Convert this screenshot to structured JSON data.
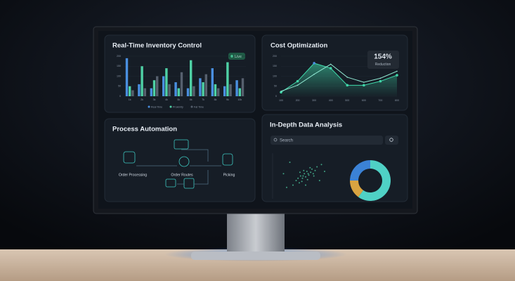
{
  "panels": {
    "inventory": {
      "title": "Real-Time Inventory Control",
      "badge": "Live",
      "chart_data": {
        "type": "bar",
        "categories": [
          "1k",
          "2k",
          "3k",
          "4k",
          "5k",
          "6k",
          "7k",
          "8k",
          "9k",
          "10k"
        ],
        "series": [
          {
            "name": "Real Time",
            "color": "#4a8fe0",
            "values": [
              190,
              60,
              40,
              100,
              70,
              40,
              90,
              140,
              50,
              80
            ]
          },
          {
            "name": "Proximity",
            "color": "#4fd1a5",
            "values": [
              50,
              150,
              80,
              140,
              40,
              180,
              70,
              60,
              170,
              40
            ]
          },
          {
            "name": "Fat Time",
            "color": "#56606e",
            "values": [
              30,
              40,
              100,
              60,
              120,
              50,
              110,
              40,
              60,
              90
            ]
          }
        ],
        "ylim": [
          0,
          200
        ],
        "yticks": [
          0,
          50,
          100,
          150,
          200
        ]
      }
    },
    "cost": {
      "title": "Cost Optimization",
      "stat": "154%",
      "stat_label": "Reduction",
      "chart_data": {
        "type": "line",
        "x": [
          100,
          200,
          300,
          400,
          500,
          600,
          700,
          800
        ],
        "series": [
          {
            "color": "#3fd6a8",
            "values": [
              20,
              75,
              165,
              140,
              55,
              55,
              75,
              105
            ]
          },
          {
            "color": "#8fe6d0",
            "values": [
              25,
              55,
              110,
              160,
              95,
              70,
              90,
              125
            ]
          }
        ],
        "xlim": [
          100,
          800
        ],
        "xticks": [
          100,
          200,
          300,
          400,
          500,
          600,
          700,
          800
        ],
        "ylim": [
          0,
          200
        ],
        "yticks": [
          0,
          50,
          100,
          150,
          200
        ]
      }
    },
    "process": {
      "title": "Process Automation",
      "nodes": [
        "Order Processing",
        "Order Routes",
        "Picking"
      ]
    },
    "analysis": {
      "title": "In-Depth Data Analysis",
      "search": "Search",
      "scatter": {
        "type": "scatter",
        "xlim": [
          0,
          100
        ],
        "ylim": [
          0,
          100
        ],
        "color": "#4fd1a5",
        "x": [
          30,
          35,
          40,
          42,
          45,
          48,
          50,
          52,
          55,
          58,
          60,
          62,
          65,
          38,
          44,
          47,
          53,
          57,
          63,
          68,
          20,
          25,
          72,
          75,
          80,
          15,
          50,
          46,
          54,
          41
        ],
        "y": [
          30,
          40,
          35,
          50,
          45,
          55,
          48,
          60,
          52,
          58,
          65,
          55,
          62,
          45,
          38,
          62,
          42,
          68,
          50,
          70,
          25,
          80,
          40,
          75,
          60,
          55,
          30,
          50,
          55,
          58
        ]
      },
      "donut": {
        "type": "pie",
        "values": [
          60,
          15,
          25
        ],
        "colors": [
          "#4fd1c5",
          "#d9a441",
          "#3b82d6"
        ]
      }
    }
  }
}
